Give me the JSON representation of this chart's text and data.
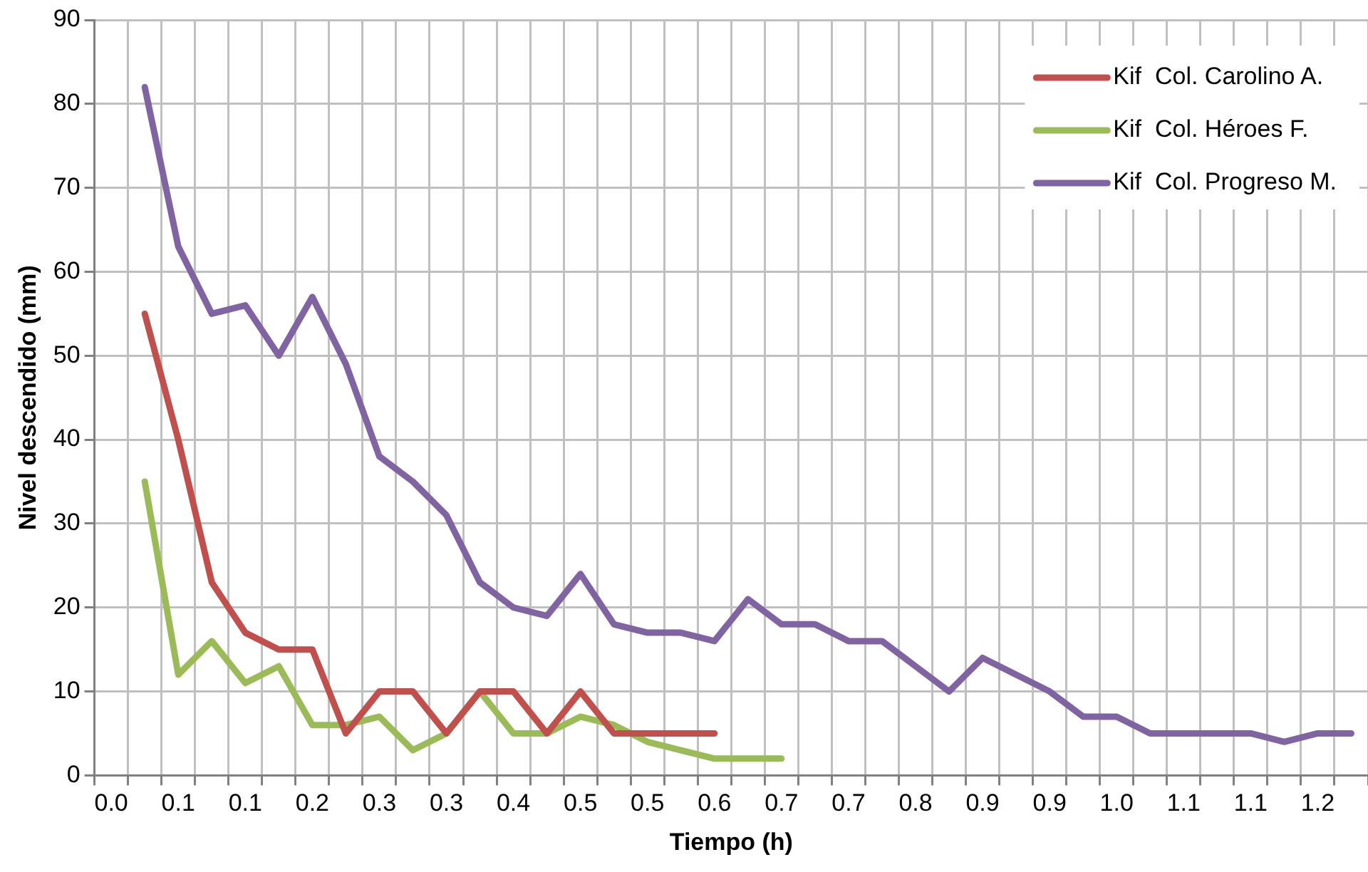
{
  "chart_data": {
    "type": "line",
    "xlabel": "Tiempo (h)",
    "ylabel": "Nivel descendido (mm)",
    "categories": [
      "0.0",
      null,
      "0.1",
      null,
      "0.1",
      null,
      "0.2",
      null,
      "0.3",
      null,
      "0.3",
      null,
      "0.4",
      null,
      "0.5",
      null,
      "0.5",
      null,
      "0.6",
      null,
      "0.7",
      null,
      "0.7",
      null,
      "0.8",
      null,
      "0.9",
      null,
      "0.9",
      null,
      "1.0",
      null,
      "1.1",
      null,
      "1.1",
      null,
      "1.2",
      null
    ],
    "series": [
      {
        "name": "Kif  Col. Carolino A.",
        "color": "#c0504d",
        "values": [
          null,
          55,
          40,
          23,
          17,
          15,
          15,
          5,
          10,
          10,
          5,
          10,
          10,
          5,
          10,
          5,
          5,
          5,
          5,
          null,
          null,
          null,
          null,
          null,
          null,
          null,
          null,
          null,
          null,
          null,
          null,
          null,
          null,
          null,
          null,
          null,
          null,
          null
        ]
      },
      {
        "name": "Kif  Col. Héroes F.",
        "color": "#9bbb59",
        "values": [
          null,
          35,
          12,
          16,
          11,
          13,
          6,
          6,
          7,
          3,
          5,
          10,
          5,
          5,
          7,
          6,
          4,
          3,
          2,
          2,
          2,
          null,
          null,
          null,
          null,
          null,
          null,
          null,
          null,
          null,
          null,
          null,
          null,
          null,
          null,
          null,
          null,
          null
        ]
      },
      {
        "name": "Kif  Col. Progreso M.",
        "color": "#8064a2",
        "values": [
          null,
          82,
          63,
          55,
          56,
          50,
          57,
          49,
          38,
          35,
          31,
          23,
          20,
          19,
          24,
          18,
          17,
          17,
          16,
          21,
          18,
          18,
          16,
          16,
          13,
          10,
          14,
          12,
          10,
          7,
          7,
          5,
          5,
          5,
          5,
          4,
          5,
          5
        ]
      }
    ],
    "ylim": [
      0,
      90
    ],
    "yticks": [
      0,
      10,
      20,
      30,
      40,
      50,
      60,
      70,
      80,
      90
    ],
    "grid": true,
    "legend": "top right",
    "marker": "none",
    "line_style": "solid"
  }
}
